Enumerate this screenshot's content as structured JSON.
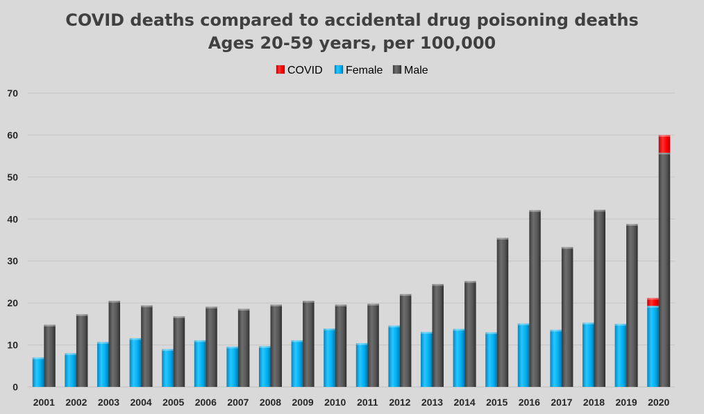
{
  "chart_data": {
    "type": "bar",
    "title": "COVID deaths compared to accidental drug poisoning deaths",
    "subtitle": "Ages 20-59 years, per 100,000",
    "xlabel": "",
    "ylabel": "",
    "ylim": [
      0,
      70
    ],
    "yticks": [
      0,
      10,
      20,
      30,
      40,
      50,
      60,
      70
    ],
    "grid": true,
    "legend_position": "top",
    "stacked_segment": "COVID",
    "categories": [
      "2001",
      "2002",
      "2003",
      "2004",
      "2005",
      "2006",
      "2007",
      "2008",
      "2009",
      "2010",
      "2011",
      "2012",
      "2013",
      "2014",
      "2015",
      "2016",
      "2017",
      "2018",
      "2019",
      "2020"
    ],
    "series": [
      {
        "name": "Female",
        "color": "#00b0f0",
        "values": [
          7,
          8,
          10.7,
          11.6,
          9,
          11.1,
          9.6,
          9.7,
          11.1,
          13.9,
          10.4,
          14.6,
          13.1,
          13.8,
          13,
          15.1,
          13.6,
          15.3,
          15,
          19.3
        ]
      },
      {
        "name": "Male",
        "color": "#595959",
        "values": [
          14.8,
          17.3,
          20.5,
          19.4,
          16.8,
          19.1,
          18.6,
          19.6,
          20.5,
          19.6,
          19.8,
          22.1,
          24.5,
          25.2,
          35.5,
          42.1,
          33.3,
          42.2,
          38.8,
          55.8
        ]
      },
      {
        "name": "COVID",
        "color": "#ff0000",
        "values": [
          0,
          0,
          0,
          0,
          0,
          0,
          0,
          0,
          0,
          0,
          0,
          0,
          0,
          0,
          0,
          0,
          0,
          0,
          0,
          0
        ],
        "stack_on": {
          "Female": [
            0,
            0,
            0,
            0,
            0,
            0,
            0,
            0,
            0,
            0,
            0,
            0,
            0,
            0,
            0,
            0,
            0,
            0,
            0,
            1.9
          ],
          "Male": [
            0,
            0,
            0,
            0,
            0,
            0,
            0,
            0,
            0,
            0,
            0,
            0,
            0,
            0,
            0,
            0,
            0,
            0,
            0,
            4.2
          ]
        }
      }
    ],
    "legend": [
      "COVID",
      "Female",
      "Male"
    ]
  }
}
